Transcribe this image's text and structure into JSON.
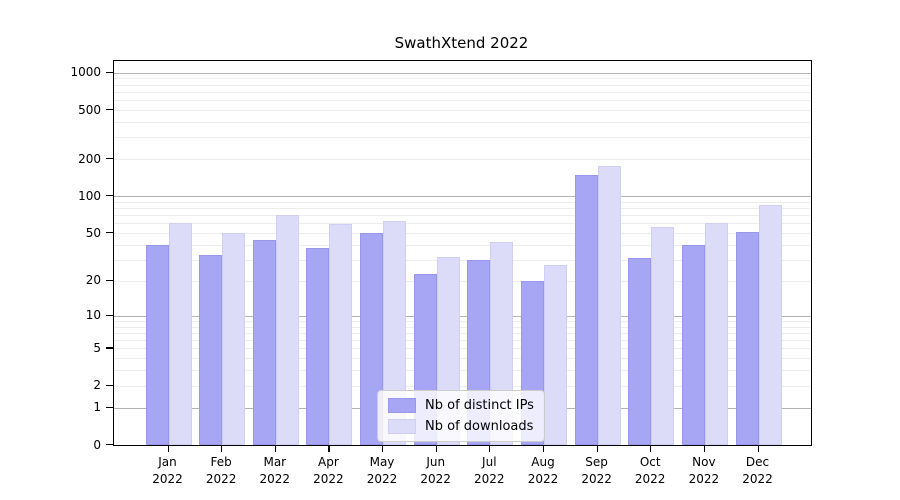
{
  "figure": {
    "title": "SwathXtend 2022"
  },
  "chart_data": {
    "type": "bar",
    "title": "SwathXtend 2022",
    "categories": [
      "Jan 2022",
      "Feb 2022",
      "Mar 2022",
      "Apr 2022",
      "May 2022",
      "Jun 2022",
      "Jul 2022",
      "Aug 2022",
      "Sep 2022",
      "Oct 2022",
      "Nov 2022",
      "Dec 2022"
    ],
    "series": [
      {
        "name": "Nb of distinct IPs",
        "color": "#a6a6f4",
        "edge_color": "#9898ea",
        "values": [
          40,
          33,
          44,
          38,
          50,
          23,
          30,
          20,
          150,
          31,
          40,
          51
        ]
      },
      {
        "name": "Nb of downloads",
        "color": "#dcdcf9",
        "edge_color": "#cfcff4",
        "values": [
          60,
          50,
          70,
          59,
          63,
          32,
          42,
          27,
          175,
          56,
          60,
          85
        ]
      }
    ],
    "xlabel": "",
    "ylabel": "",
    "y_ticks": [
      0,
      1,
      2,
      5,
      10,
      20,
      50,
      100,
      200,
      500,
      1000
    ],
    "y_scale": "log10(1+x)",
    "ylim": [
      0,
      1240
    ],
    "grid": "horizontal",
    "major_gridline_values": [
      1,
      10,
      100,
      1000
    ],
    "minor_gridline_decades": [
      1,
      10,
      100
    ],
    "major_grid_color": "#b3b3b3",
    "minor_grid_color": "#ededed",
    "legend": {
      "position": "lower-center-inside",
      "entries": [
        "Nb of distinct IPs",
        "Nb of downloads"
      ]
    }
  }
}
